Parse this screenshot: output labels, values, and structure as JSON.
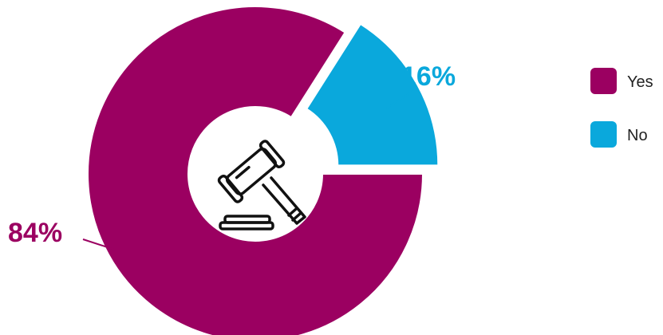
{
  "chart_data": {
    "type": "pie",
    "categories": [
      "Yes",
      "No"
    ],
    "values": [
      84,
      16
    ],
    "unit": "%",
    "colors": [
      "#9b0061",
      "#0aa8dc"
    ],
    "data_labels": [
      "84%",
      "16%"
    ],
    "legend_position": "right",
    "center_icon": "gavel-icon"
  }
}
